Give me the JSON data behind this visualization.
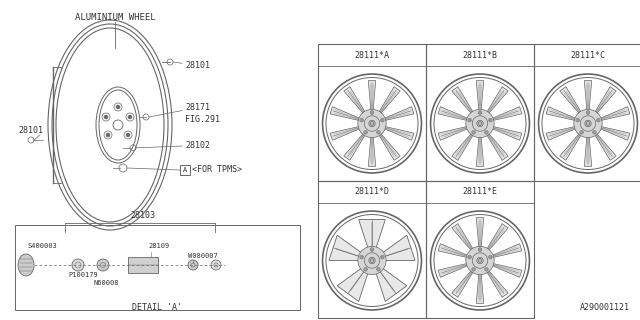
{
  "bg_color": "white",
  "line_color": "#666666",
  "text_color": "#333333",
  "title_text": "ALUMINIUM WHEEL",
  "grid_labels": [
    [
      "28111*A",
      "28111*B",
      "28111*C"
    ],
    [
      "28111*D",
      "28111*E",
      ""
    ]
  ],
  "part_number": "A29O001121",
  "font_size_tiny": 5.0,
  "font_size_small": 5.5,
  "font_size_label": 6.0,
  "font_size_title": 6.5
}
